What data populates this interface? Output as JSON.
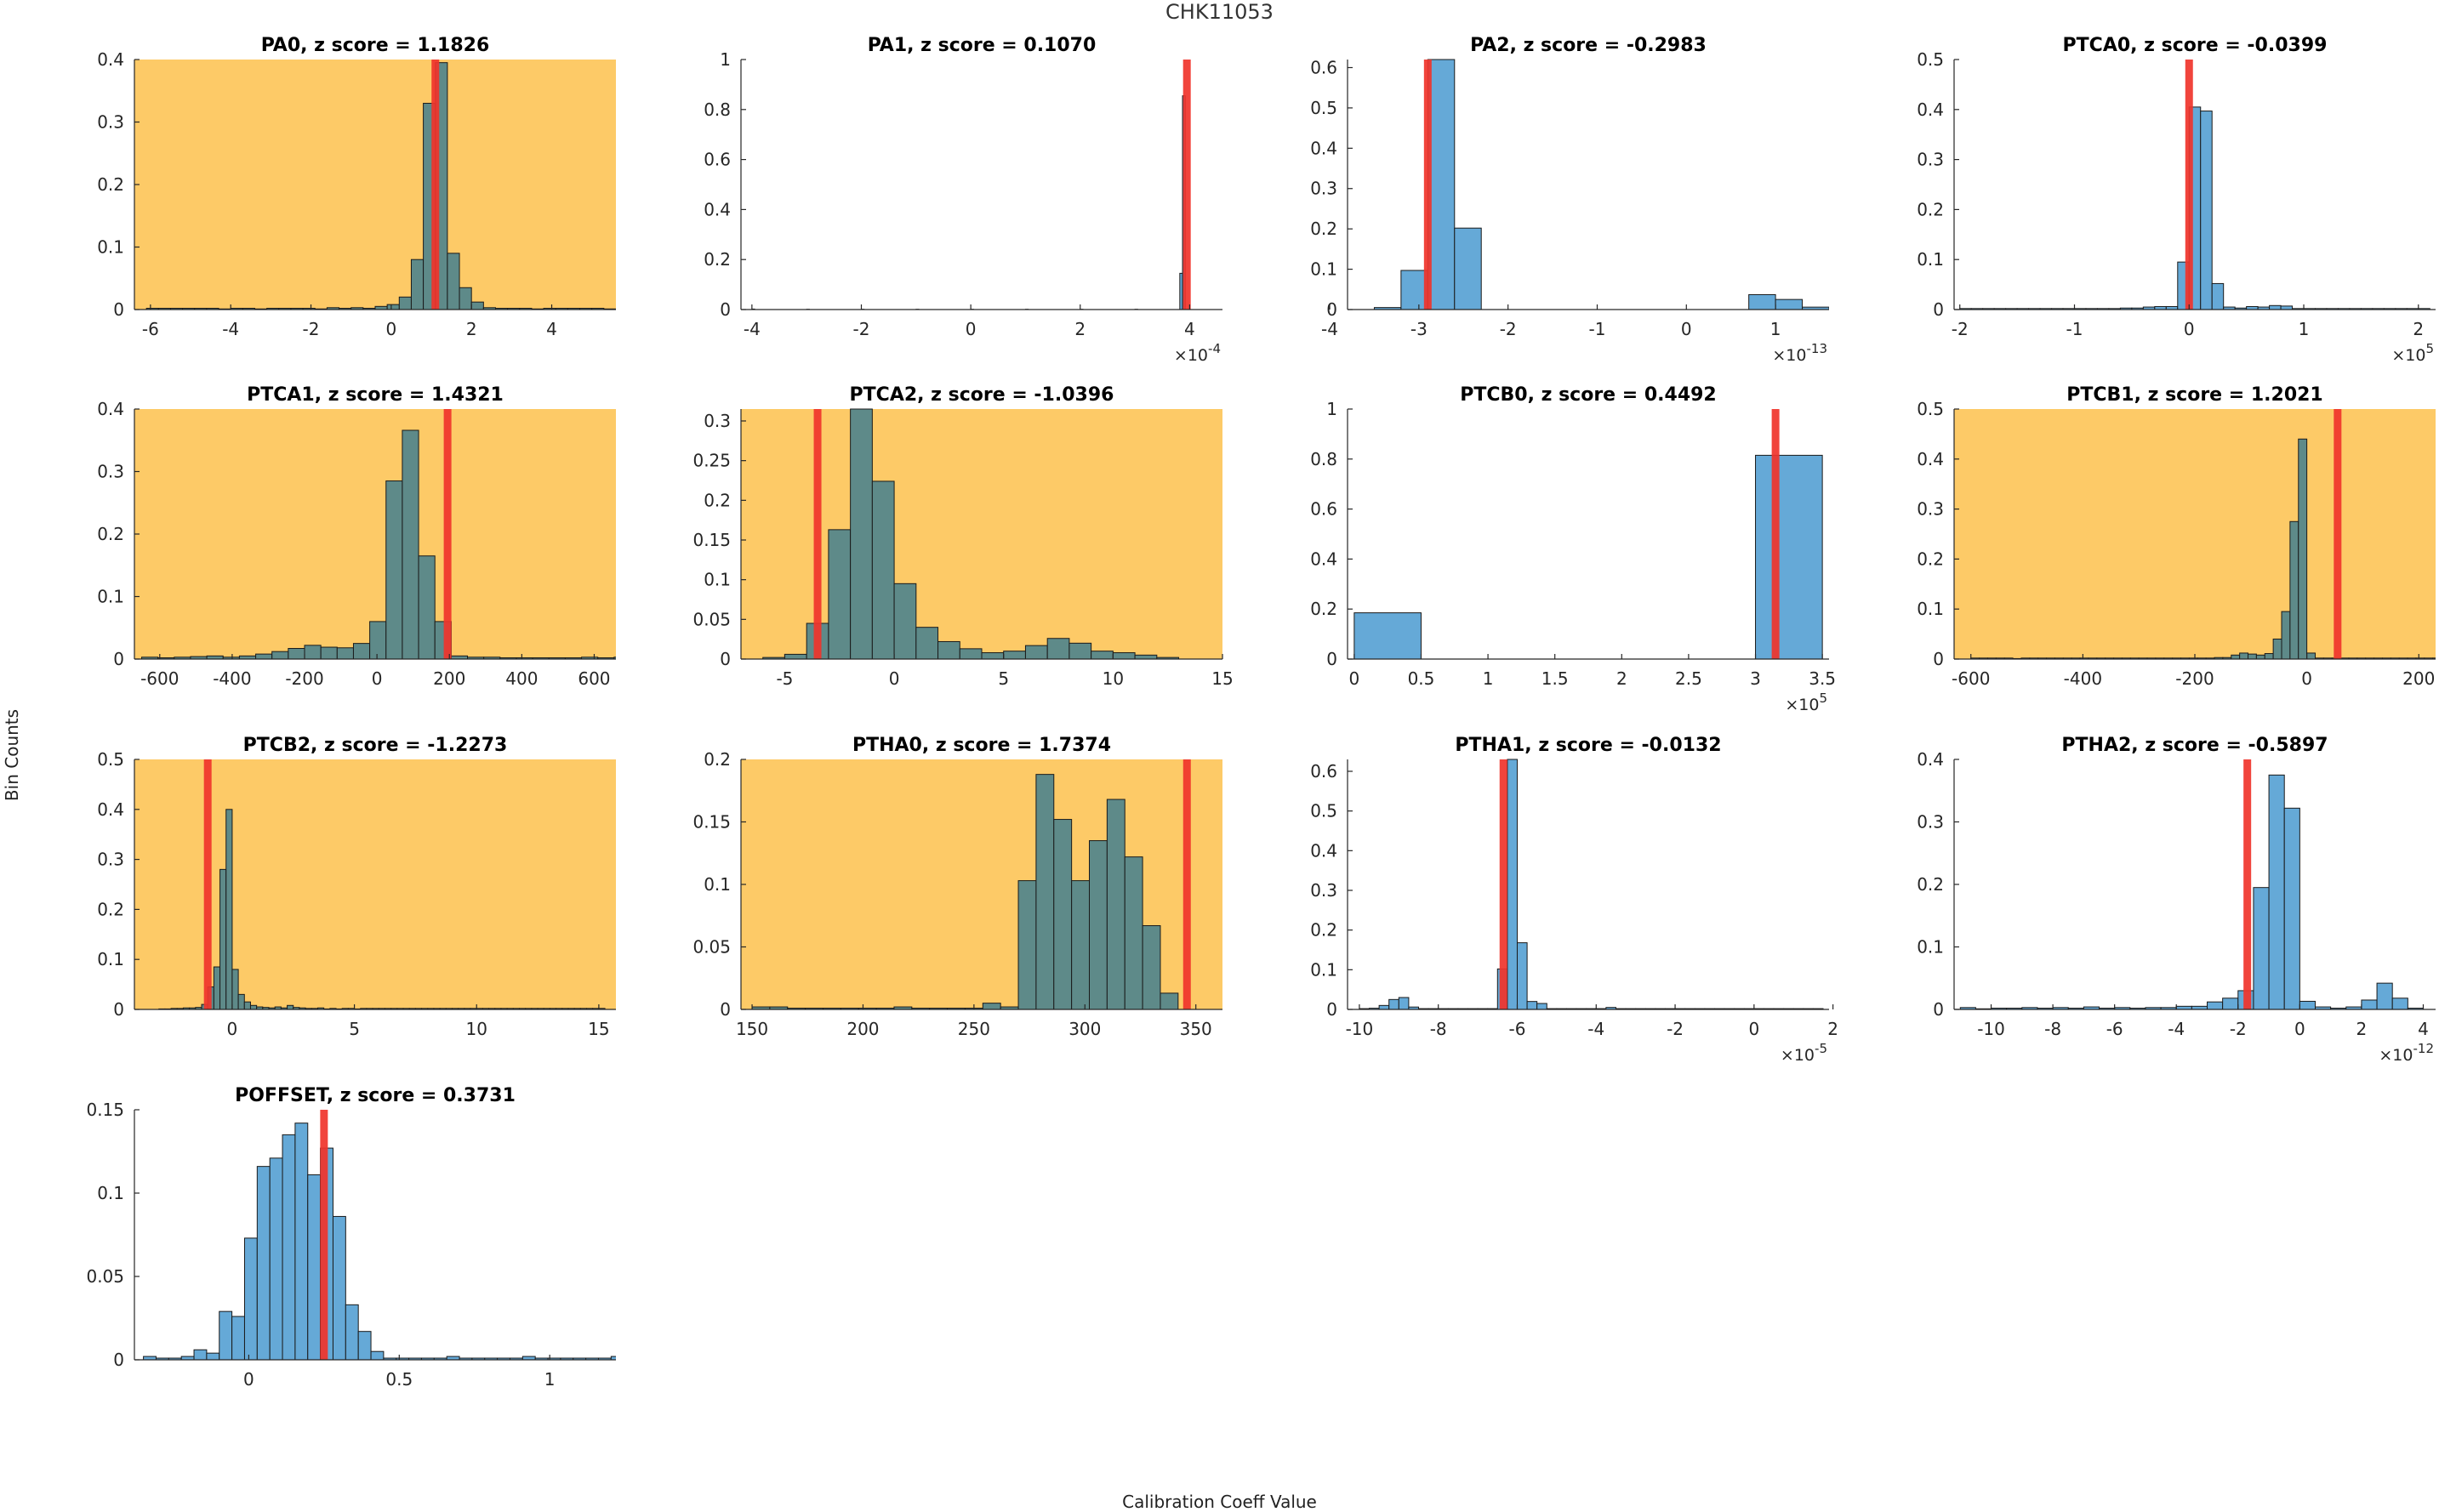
{
  "figure": {
    "title": "CHK11053",
    "ylabel": "Bin Counts",
    "xlabel": "Calibration Coeff Value"
  },
  "colors": {
    "flagged_background": "#fdca67",
    "bar_on_flagged": "#5e8a89",
    "bar_normal": "#65a9d7",
    "bar_edge": "#1a1a1a",
    "marker": "#f0342b"
  },
  "chart_data": [
    {
      "type": "bar",
      "title": "PA0, z score = 1.1826",
      "flagged": true,
      "xlim": [
        -6.4,
        5.6
      ],
      "ylim": [
        0,
        0.4
      ],
      "xticks": [
        -6,
        -4,
        -2,
        0,
        2,
        4
      ],
      "xtick_labels": [
        "-6",
        "-4",
        "-2",
        "0",
        "2",
        "4"
      ],
      "yticks": [
        0,
        0.1,
        0.2,
        0.3,
        0.4
      ],
      "ytick_labels": [
        "0",
        "0.1",
        "0.2",
        "0.3",
        "0.4"
      ],
      "exponent": "",
      "bin_start": -6.1,
      "bin_width": 0.3,
      "values": [
        0.002,
        0.002,
        0.002,
        0.002,
        0.002,
        0.002,
        0.001,
        0.002,
        0.002,
        0.001,
        0.002,
        0.002,
        0.002,
        0.002,
        0.001,
        0.003,
        0.002,
        0.003,
        0.002,
        0.005,
        0.008,
        0.02,
        0.08,
        0.33,
        0.395,
        0.09,
        0.035,
        0.012,
        0.003,
        0.002,
        0.002,
        0.002,
        0.001,
        0.002,
        0.002,
        0.002,
        0.002,
        0.002,
        0.001
      ],
      "marker": 1.1
    },
    {
      "type": "bar",
      "title": "PA1, z score = 0.1070",
      "flagged": false,
      "xlim": [
        -4.2,
        4.6
      ],
      "ylim": [
        0,
        1
      ],
      "xticks": [
        -4,
        -2,
        0,
        2,
        4
      ],
      "xtick_labels": [
        "-4",
        "-2",
        "0",
        "2",
        "4"
      ],
      "yticks": [
        0,
        0.2,
        0.4,
        0.6,
        0.8,
        1
      ],
      "ytick_labels": [
        "0",
        "0.2",
        "0.4",
        "0.6",
        "0.8",
        "1"
      ],
      "exponent": "×10^-4",
      "bin_start": -4.0,
      "bin_width": 0.05,
      "sparse": [
        [
          -4.0,
          0.002
        ],
        [
          -3.0,
          0.001
        ],
        [
          -2.0,
          0.001
        ],
        [
          -1.0,
          0.001
        ],
        [
          0.0,
          0.001
        ],
        [
          1.0,
          0.001
        ],
        [
          2.0,
          0.001
        ],
        [
          3.0,
          0.001
        ],
        [
          3.82,
          0.145
        ],
        [
          3.87,
          0.855
        ]
      ],
      "marker": 3.95
    },
    {
      "type": "bar",
      "title": "PA2, z score = -0.2983",
      "flagged": false,
      "xlim": [
        -3.8,
        1.6
      ],
      "ylim": [
        0,
        0.62
      ],
      "xticks": [
        -4,
        -3,
        -2,
        -1,
        0,
        1
      ],
      "xtick_labels": [
        "-4",
        "-3",
        "-2",
        "-1",
        "0",
        "1"
      ],
      "yticks": [
        0,
        0.1,
        0.2,
        0.3,
        0.4,
        0.5,
        0.6
      ],
      "ytick_labels": [
        "0",
        "0.1",
        "0.2",
        "0.3",
        "0.4",
        "0.5",
        "0.6"
      ],
      "exponent": "×10^-13",
      "bin_start": -3.5,
      "bin_width": 0.3,
      "values": [
        0.005,
        0.097,
        0.62,
        0.202,
        0,
        0,
        0,
        0,
        0,
        0,
        0,
        0,
        0,
        0,
        0.037,
        0.025,
        0.006
      ],
      "marker": -2.9
    },
    {
      "type": "bar",
      "title": "PTCA0, z score = -0.0399",
      "flagged": false,
      "xlim": [
        -2.05,
        2.15
      ],
      "ylim": [
        0,
        0.5
      ],
      "xticks": [
        -2,
        -1,
        0,
        1,
        2
      ],
      "xtick_labels": [
        "-2",
        "-1",
        "0",
        "1",
        "2"
      ],
      "yticks": [
        0,
        0.1,
        0.2,
        0.3,
        0.4,
        0.5
      ],
      "ytick_labels": [
        "0",
        "0.1",
        "0.2",
        "0.3",
        "0.4",
        "0.5"
      ],
      "exponent": "×10^5",
      "bin_start": -2.0,
      "bin_width": 0.1,
      "values": [
        0.002,
        0.002,
        0.002,
        0.002,
        0.002,
        0.002,
        0.002,
        0.002,
        0.002,
        0.002,
        0.002,
        0.002,
        0.002,
        0.002,
        0.003,
        0.003,
        0.005,
        0.006,
        0.006,
        0.095,
        0.405,
        0.397,
        0.052,
        0.005,
        0.003,
        0.006,
        0.005,
        0.008,
        0.007,
        0.002,
        0.002,
        0.002,
        0.002,
        0.002,
        0.002,
        0.002,
        0.002,
        0.002,
        0.002,
        0.002,
        0.002
      ],
      "marker": 0.0
    },
    {
      "type": "bar",
      "title": "PTCA1, z score = 1.4321",
      "flagged": true,
      "xlim": [
        -670,
        660
      ],
      "ylim": [
        0,
        0.4
      ],
      "xticks": [
        -600,
        -400,
        -200,
        0,
        200,
        400,
        600
      ],
      "xtick_labels": [
        "-600",
        "-400",
        "-200",
        "0",
        "200",
        "400",
        "600"
      ],
      "yticks": [
        0,
        0.1,
        0.2,
        0.3,
        0.4
      ],
      "ytick_labels": [
        "0",
        "0.1",
        "0.2",
        "0.3",
        "0.4"
      ],
      "exponent": "",
      "bin_start": -650,
      "bin_width": 45,
      "values": [
        0.003,
        0.002,
        0.003,
        0.004,
        0.005,
        0.003,
        0.005,
        0.008,
        0.012,
        0.017,
        0.022,
        0.019,
        0.018,
        0.025,
        0.06,
        0.285,
        0.366,
        0.165,
        0.06,
        0.005,
        0.003,
        0.003,
        0.002,
        0.002,
        0.002,
        0.002,
        0.002,
        0.003,
        0.002,
        0.003
      ],
      "marker": 195
    },
    {
      "type": "bar",
      "title": "PTCA2, z score = -1.0396",
      "flagged": true,
      "xlim": [
        -7,
        15
      ],
      "ylim": [
        0,
        0.315
      ],
      "xticks": [
        -5,
        0,
        5,
        10,
        15
      ],
      "xtick_labels": [
        "-5",
        "0",
        "5",
        "10",
        "15"
      ],
      "yticks": [
        0,
        0.05,
        0.1,
        0.15,
        0.2,
        0.25,
        0.3
      ],
      "ytick_labels": [
        "0",
        "0.05",
        "0.1",
        "0.15",
        "0.2",
        "0.25",
        "0.3"
      ],
      "exponent": "",
      "bin_start": -6.0,
      "bin_width": 1.0,
      "values": [
        0.002,
        0.006,
        0.045,
        0.163,
        0.316,
        0.224,
        0.095,
        0.04,
        0.022,
        0.013,
        0.008,
        0.01,
        0.017,
        0.026,
        0.02,
        0.01,
        0.008,
        0.005,
        0.002
      ],
      "marker": -3.5
    },
    {
      "type": "bar",
      "title": "PTCB0, z score = 0.4492",
      "flagged": false,
      "xlim": [
        -0.05,
        3.55
      ],
      "ylim": [
        0,
        1
      ],
      "xticks": [
        0,
        0.5,
        1,
        1.5,
        2,
        2.5,
        3,
        3.5
      ],
      "xtick_labels": [
        "0",
        "0.5",
        "1",
        "1.5",
        "2",
        "2.5",
        "3",
        "3.5"
      ],
      "yticks": [
        0,
        0.2,
        0.4,
        0.6,
        0.8,
        1
      ],
      "ytick_labels": [
        "0",
        "0.2",
        "0.4",
        "0.6",
        "0.8",
        "1"
      ],
      "exponent": "×10^5",
      "bin_start": 0.0,
      "bin_width": 0.5,
      "values": [
        0.185,
        0,
        0,
        0,
        0,
        0,
        0.815
      ],
      "marker": 3.15
    },
    {
      "type": "bar",
      "title": "PTCB1, z score = 1.2021",
      "flagged": true,
      "xlim": [
        -630,
        230
      ],
      "ylim": [
        0,
        0.5
      ],
      "xticks": [
        -600,
        -400,
        -200,
        0,
        200
      ],
      "xtick_labels": [
        "-600",
        "-400",
        "-200",
        "0",
        "200"
      ],
      "yticks": [
        0,
        0.1,
        0.2,
        0.3,
        0.4,
        0.5
      ],
      "ytick_labels": [
        "0",
        "0.1",
        "0.2",
        "0.3",
        "0.4",
        "0.5"
      ],
      "exponent": "",
      "bin_start": -600,
      "bin_width": 15,
      "values": [
        0.002,
        0.002,
        0.002,
        0.002,
        0.002,
        0.001,
        0.002,
        0.002,
        0.002,
        0.002,
        0.002,
        0.002,
        0.002,
        0.002,
        0.002,
        0.002,
        0.002,
        0.002,
        0.002,
        0.002,
        0.002,
        0.002,
        0.002,
        0.002,
        0.002,
        0.002,
        0.002,
        0.002,
        0.002,
        0.003,
        0.003,
        0.008,
        0.012,
        0.01,
        0.008,
        0.011,
        0.04,
        0.095,
        0.275,
        0.44,
        0.012,
        0.002,
        0.002,
        0.002,
        0.002,
        0.002,
        0.002,
        0.002,
        0.002,
        0.002,
        0.002,
        0.002,
        0.002,
        0.002,
        0.002,
        0.002
      ],
      "marker": 55
    },
    {
      "type": "bar",
      "title": "PTCB2, z score = -1.2273",
      "flagged": true,
      "xlim": [
        -4,
        15.7
      ],
      "ylim": [
        0,
        0.5
      ],
      "xticks": [
        0,
        5,
        10,
        15
      ],
      "xtick_labels": [
        "0",
        "5",
        "10",
        "15"
      ],
      "yticks": [
        0,
        0.1,
        0.2,
        0.3,
        0.4,
        0.5
      ],
      "ytick_labels": [
        "0",
        "0.1",
        "0.2",
        "0.3",
        "0.4",
        "0.5"
      ],
      "exponent": "",
      "bin_start": -3.0,
      "bin_width": 0.25,
      "values": [
        0.001,
        0.001,
        0.002,
        0.002,
        0.003,
        0.003,
        0.004,
        0.01,
        0.045,
        0.085,
        0.28,
        0.4,
        0.08,
        0.03,
        0.015,
        0.008,
        0.005,
        0.004,
        0.003,
        0.005,
        0.003,
        0.008,
        0.004,
        0.003,
        0.002,
        0.002,
        0.003,
        0.001,
        0.002,
        0.001,
        0.002,
        0.002,
        0.001,
        0.002,
        0.002,
        0.002,
        0.002,
        0.002,
        0.002,
        0.002,
        0.002,
        0.002,
        0.002,
        0.002,
        0.002,
        0.002,
        0.002,
        0.002,
        0.002,
        0.002,
        0.002,
        0.002,
        0.002,
        0.002,
        0.002,
        0.002,
        0.002,
        0.002,
        0.002,
        0.002,
        0.002,
        0.002,
        0.002,
        0.002,
        0.002,
        0.002,
        0.002,
        0.002,
        0.002,
        0.002,
        0.002,
        0.002,
        0.002
      ],
      "marker": -1.0
    },
    {
      "type": "bar",
      "title": "PTHA0, z score = 1.7374",
      "flagged": true,
      "xlim": [
        145,
        362
      ],
      "ylim": [
        0,
        0.2
      ],
      "xticks": [
        150,
        200,
        250,
        300,
        350
      ],
      "xtick_labels": [
        "150",
        "200",
        "250",
        "300",
        "350"
      ],
      "yticks": [
        0,
        0.05,
        0.1,
        0.15,
        0.2
      ],
      "ytick_labels": [
        "0",
        "0.05",
        "0.1",
        "0.15",
        "0.2"
      ],
      "exponent": "",
      "bin_start": 150,
      "bin_width": 8,
      "values": [
        0.002,
        0.002,
        0.001,
        0.001,
        0.001,
        0.001,
        0.001,
        0.001,
        0.002,
        0.001,
        0.001,
        0.001,
        0.001,
        0.005,
        0.002,
        0.103,
        0.188,
        0.152,
        0.103,
        0.135,
        0.168,
        0.122,
        0.067,
        0.013
      ],
      "marker": 346
    },
    {
      "type": "bar",
      "title": "PTHA1, z score = -0.0132",
      "flagged": false,
      "xlim": [
        -10.3,
        1.9
      ],
      "ylim": [
        0,
        0.63
      ],
      "xticks": [
        -10,
        -8,
        -6,
        -4,
        -2,
        0,
        2
      ],
      "xtick_labels": [
        "-10",
        "-8",
        "-6",
        "-4",
        "-2",
        "0",
        "2"
      ],
      "yticks": [
        0,
        0.1,
        0.2,
        0.3,
        0.4,
        0.5,
        0.6
      ],
      "ytick_labels": [
        "0",
        "0.1",
        "0.2",
        "0.3",
        "0.4",
        "0.5",
        "0.6"
      ],
      "exponent": "×10^-5",
      "bin_start": -10.0,
      "bin_width": 0.25,
      "values": [
        0.002,
        0.003,
        0.01,
        0.025,
        0.03,
        0.006,
        0.002,
        0.002,
        0.002,
        0.002,
        0.002,
        0.002,
        0.002,
        0.002,
        0.102,
        0.63,
        0.168,
        0.02,
        0.015,
        0.002,
        0.002,
        0.002,
        0.002,
        0.002,
        0.002,
        0.005,
        0.002,
        0.002,
        0.002,
        0.002,
        0.002,
        0.002,
        0.002,
        0.002,
        0.002,
        0.002,
        0.002,
        0.002,
        0.002,
        0.002,
        0.002,
        0.002,
        0.002,
        0.002,
        0.002,
        0.002,
        0.002
      ],
      "marker": -6.35
    },
    {
      "type": "bar",
      "title": "PTHA2, z score = -0.5897",
      "flagged": false,
      "xlim": [
        -11.2,
        4.4
      ],
      "ylim": [
        0,
        0.4
      ],
      "xticks": [
        -10,
        -8,
        -6,
        -4,
        -2,
        0,
        2,
        4
      ],
      "xtick_labels": [
        "-10",
        "-8",
        "-6",
        "-4",
        "-2",
        "0",
        "2",
        "4"
      ],
      "yticks": [
        0,
        0.1,
        0.2,
        0.3,
        0.4
      ],
      "ytick_labels": [
        "0",
        "0.1",
        "0.2",
        "0.3",
        "0.4"
      ],
      "exponent": "×10^-12",
      "bin_start": -11.0,
      "bin_width": 0.5,
      "values": [
        0.003,
        0.001,
        0.002,
        0.002,
        0.003,
        0.002,
        0.003,
        0.002,
        0.004,
        0.002,
        0.003,
        0.002,
        0.003,
        0.003,
        0.005,
        0.005,
        0.012,
        0.018,
        0.03,
        0.195,
        0.375,
        0.322,
        0.013,
        0.004,
        0.002,
        0.004,
        0.015,
        0.042,
        0.018,
        0.002
      ],
      "marker": -1.7
    },
    {
      "type": "bar",
      "title": "POFFSET, z score = 0.3731",
      "flagged": false,
      "xlim": [
        -0.38,
        1.22
      ],
      "ylim": [
        0,
        0.15
      ],
      "xticks": [
        0,
        0.5,
        1
      ],
      "xtick_labels": [
        "0",
        "0.5",
        "1"
      ],
      "yticks": [
        0,
        0.05,
        0.1,
        0.15
      ],
      "ytick_labels": [
        "0",
        "0.05",
        "0.1",
        "0.15"
      ],
      "exponent": "",
      "bin_start": -0.35,
      "bin_width": 0.042,
      "values": [
        0.002,
        0.001,
        0.001,
        0.002,
        0.006,
        0.004,
        0.029,
        0.026,
        0.073,
        0.116,
        0.121,
        0.135,
        0.142,
        0.111,
        0.127,
        0.086,
        0.033,
        0.017,
        0.005,
        0.001,
        0.001,
        0.001,
        0.001,
        0.001,
        0.002,
        0.001,
        0.001,
        0.001,
        0.001,
        0.001,
        0.002,
        0.001,
        0.001,
        0.001,
        0.001,
        0.001,
        0.001,
        0.002
      ],
      "marker": 0.25
    }
  ]
}
